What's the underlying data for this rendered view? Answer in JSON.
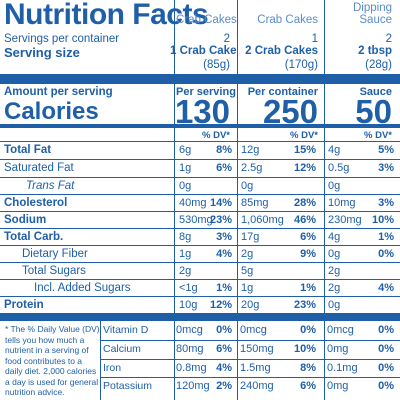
{
  "title": "Nutrition Facts",
  "servings_label": "Servings per container",
  "serving_size_label": "Serving size",
  "amount_per_serving_label": "Amount per serving",
  "calories_label": "Calories",
  "dv_header": "% DV*",
  "columns": [
    {
      "name": "Crab Cakes",
      "servings": "2",
      "size": "1 Crab Cake",
      "grams": "(85g)",
      "per": "Per serving",
      "calories": "130"
    },
    {
      "name": "Crab Cakes",
      "servings": "1",
      "size": "2 Crab Cakes",
      "grams": "(170g)",
      "per": "Per container",
      "calories": "250"
    },
    {
      "name": "Dipping\nSauce",
      "servings": "2",
      "size": "2 tbsp",
      "grams": "(28g)",
      "per": "Sauce",
      "calories": "50"
    }
  ],
  "nutrients": [
    {
      "label": "Total Fat",
      "vals": [
        [
          "6g",
          "8%"
        ],
        [
          "12g",
          "15%"
        ],
        [
          "4g",
          "5%"
        ]
      ]
    },
    {
      "label": "Saturated Fat",
      "vals": [
        [
          "1g",
          "6%"
        ],
        [
          "2.5g",
          "12%"
        ],
        [
          "0.5g",
          "3%"
        ]
      ]
    },
    {
      "label": "Trans Fat",
      "vals": [
        [
          "0g",
          ""
        ],
        [
          "0g",
          ""
        ],
        [
          "0g",
          ""
        ]
      ]
    },
    {
      "label": "Cholesterol",
      "vals": [
        [
          "40mg",
          "14%"
        ],
        [
          "85mg",
          "28%"
        ],
        [
          "10mg",
          "3%"
        ]
      ]
    },
    {
      "label": "Sodium",
      "vals": [
        [
          "530mg",
          "23%"
        ],
        [
          "1,060mg",
          "46%"
        ],
        [
          "230mg",
          "10%"
        ]
      ]
    },
    {
      "label": "Total Carb.",
      "vals": [
        [
          "8g",
          "3%"
        ],
        [
          "17g",
          "6%"
        ],
        [
          "4g",
          "1%"
        ]
      ]
    },
    {
      "label": "Dietary Fiber",
      "vals": [
        [
          "1g",
          "4%"
        ],
        [
          "2g",
          "9%"
        ],
        [
          "0g",
          "0%"
        ]
      ]
    },
    {
      "label": "Total Sugars",
      "vals": [
        [
          "2g",
          ""
        ],
        [
          "5g",
          ""
        ],
        [
          "2g",
          ""
        ]
      ]
    },
    {
      "label": "Incl. Added Sugars",
      "vals": [
        [
          "<1g",
          "1%"
        ],
        [
          "1g",
          "1%"
        ],
        [
          "2g",
          "4%"
        ]
      ]
    },
    {
      "label": "Protein",
      "vals": [
        [
          "10g",
          "12%"
        ],
        [
          "20g",
          "23%"
        ],
        [
          "0g",
          ""
        ]
      ]
    }
  ],
  "footnote": "* The % Daily Value (DV) tells you how much a nutrient in a serving of food contributes to a daily diet. 2,000 calories a day is used for general nutrition advice.",
  "vitamins": [
    {
      "label": "Vitamin D",
      "vals": [
        [
          "0mcg",
          "0%"
        ],
        [
          "0mcg",
          "0%"
        ],
        [
          "0mcg",
          "0%"
        ]
      ]
    },
    {
      "label": "Calcium",
      "vals": [
        [
          "80mg",
          "6%"
        ],
        [
          "150mg",
          "10%"
        ],
        [
          "0mg",
          "0%"
        ]
      ]
    },
    {
      "label": "Iron",
      "vals": [
        [
          "0.8mg",
          "4%"
        ],
        [
          "1.5mg",
          "8%"
        ],
        [
          "0.1mg",
          "0%"
        ]
      ]
    },
    {
      "label": "Potassium",
      "vals": [
        [
          "120mg",
          "2%"
        ],
        [
          "240mg",
          "6%"
        ],
        [
          "0mg",
          "0%"
        ]
      ]
    }
  ],
  "colors": {
    "ink": "#1f5fa8",
    "background": "#ffffff"
  }
}
